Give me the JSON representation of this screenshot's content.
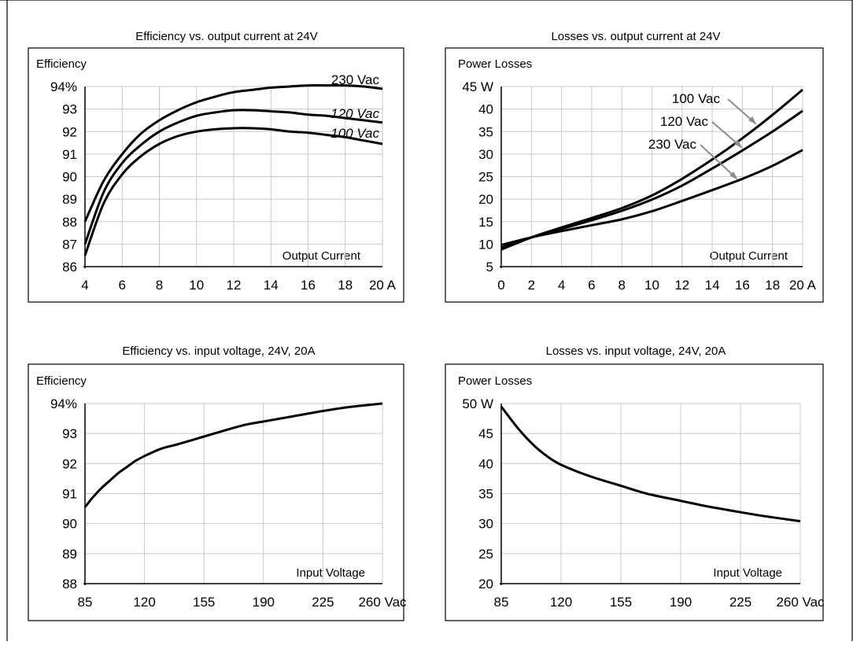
{
  "chart_data": [
    {
      "type": "line",
      "title": "Efficiency vs. output current at 24V",
      "ylabel": "Efficiency",
      "xlabel": "Output Current",
      "x_ticks": [
        "4",
        "6",
        "8",
        "10",
        "12",
        "14",
        "16",
        "18",
        "20 A"
      ],
      "y_ticks": [
        "86",
        "87",
        "88",
        "89",
        "90",
        "91",
        "92",
        "93",
        "94%"
      ],
      "xlim": [
        4,
        20
      ],
      "ylim": [
        86,
        94
      ],
      "grid": true,
      "series": [
        {
          "name": "230 Vac",
          "x": [
            4,
            5,
            6,
            7,
            8,
            9,
            10,
            11,
            12,
            13,
            14,
            15,
            16,
            17,
            18,
            19,
            20
          ],
          "y": [
            88.0,
            89.8,
            91.0,
            91.9,
            92.5,
            92.95,
            93.3,
            93.55,
            93.75,
            93.85,
            93.95,
            94.0,
            94.05,
            94.05,
            94.05,
            94.0,
            93.9
          ]
        },
        {
          "name": "120 Vac",
          "x": [
            4,
            5,
            6,
            7,
            8,
            9,
            10,
            11,
            12,
            13,
            14,
            15,
            16,
            17,
            18,
            19,
            20
          ],
          "y": [
            87.0,
            89.3,
            90.6,
            91.4,
            92.0,
            92.4,
            92.7,
            92.85,
            92.95,
            92.95,
            92.9,
            92.85,
            92.75,
            92.7,
            92.6,
            92.5,
            92.4
          ]
        },
        {
          "name": "100 Vac",
          "x": [
            4,
            5,
            6,
            7,
            8,
            9,
            10,
            11,
            12,
            13,
            14,
            15,
            16,
            17,
            18,
            19,
            20
          ],
          "y": [
            86.5,
            88.8,
            90.1,
            90.9,
            91.45,
            91.8,
            92.0,
            92.1,
            92.15,
            92.15,
            92.1,
            92.0,
            91.95,
            91.85,
            91.75,
            91.6,
            91.45
          ]
        }
      ]
    },
    {
      "type": "line",
      "title": "Losses vs. output current at 24V",
      "ylabel": "Power Losses",
      "xlabel": "Output Current",
      "x_ticks": [
        "0",
        "2",
        "4",
        "6",
        "8",
        "10",
        "12",
        "14",
        "16",
        "18",
        "20 A"
      ],
      "y_ticks": [
        "5",
        "10",
        "15",
        "20",
        "25",
        "30",
        "35",
        "40",
        "45 W"
      ],
      "xlim": [
        0,
        20
      ],
      "ylim": [
        5,
        45
      ],
      "grid": true,
      "series": [
        {
          "name": "100 Vac",
          "x": [
            0,
            2,
            4,
            6,
            8,
            10,
            12,
            14,
            16,
            18,
            20
          ],
          "y": [
            8.8,
            11.5,
            13.7,
            15.8,
            18.0,
            20.8,
            24.5,
            28.8,
            33.5,
            38.7,
            44.3
          ]
        },
        {
          "name": "120 Vac",
          "x": [
            0,
            2,
            4,
            6,
            8,
            10,
            12,
            14,
            16,
            18,
            20
          ],
          "y": [
            9.2,
            11.5,
            13.4,
            15.3,
            17.4,
            19.9,
            23.0,
            26.8,
            30.8,
            35.0,
            39.6
          ]
        },
        {
          "name": "230 Vac",
          "x": [
            0,
            2,
            4,
            6,
            8,
            10,
            12,
            14,
            16,
            18,
            20
          ],
          "y": [
            9.8,
            11.5,
            12.9,
            14.2,
            15.5,
            17.3,
            19.6,
            22.0,
            24.5,
            27.4,
            30.9
          ]
        }
      ]
    },
    {
      "type": "line",
      "title": "Efficiency vs. input voltage,  24V, 20A",
      "ylabel": "Efficiency",
      "xlabel": "Input Voltage",
      "x_ticks": [
        "85",
        "120",
        "155",
        "190",
        "225",
        "260 Vac"
      ],
      "y_ticks": [
        "88",
        "89",
        "90",
        "91",
        "92",
        "93",
        "94%"
      ],
      "xlim": [
        85,
        260
      ],
      "ylim": [
        88,
        94
      ],
      "grid": true,
      "series": [
        {
          "x": [
            85,
            90,
            95,
            100,
            105,
            110,
            115,
            120,
            130,
            140,
            155,
            170,
            180,
            190,
            205,
            225,
            240,
            260
          ],
          "y": [
            90.55,
            90.9,
            91.2,
            91.45,
            91.7,
            91.9,
            92.1,
            92.25,
            92.5,
            92.65,
            92.9,
            93.15,
            93.3,
            93.4,
            93.55,
            93.75,
            93.88,
            94.0
          ]
        }
      ]
    },
    {
      "type": "line",
      "title": "Losses vs. input voltage,  24V, 20A",
      "ylabel": "Power Losses",
      "xlabel": "Input Voltage",
      "x_ticks": [
        "85",
        "120",
        "155",
        "190",
        "225",
        "260 Vac"
      ],
      "y_ticks": [
        "20",
        "25",
        "30",
        "35",
        "40",
        "45",
        "50 W"
      ],
      "xlim": [
        85,
        260
      ],
      "ylim": [
        20,
        50
      ],
      "grid": true,
      "series": [
        {
          "x": [
            85,
            90,
            95,
            100,
            105,
            110,
            115,
            120,
            130,
            140,
            155,
            170,
            190,
            205,
            225,
            240,
            260
          ],
          "y": [
            49.5,
            47.6,
            45.8,
            44.2,
            42.8,
            41.6,
            40.6,
            39.8,
            38.6,
            37.6,
            36.3,
            35.0,
            33.8,
            32.9,
            31.9,
            31.2,
            30.4
          ]
        }
      ]
    }
  ]
}
